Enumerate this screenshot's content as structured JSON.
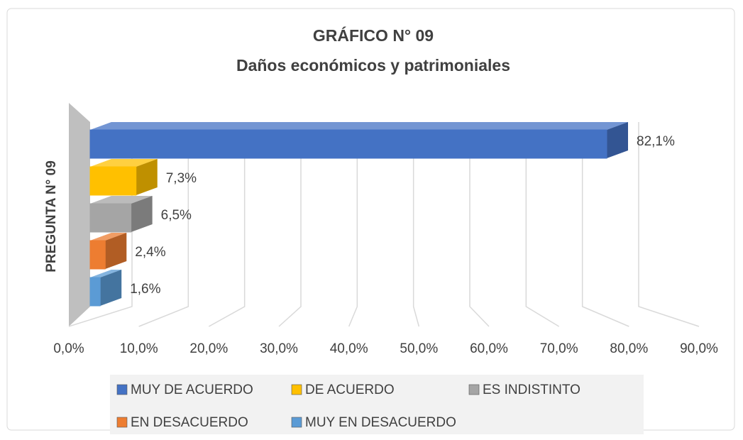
{
  "chart_data": {
    "type": "bar3d",
    "orientation": "horizontal",
    "title": "GRÁFICO N° 09",
    "subtitle": "Daños económicos y patrimoniales",
    "categories": [
      "PREGUNTA N° 09"
    ],
    "series": [
      {
        "name": "MUY DE ACUERDO",
        "color": "#4472c4",
        "values": [
          82.1
        ],
        "value_labels": [
          "82,1%"
        ]
      },
      {
        "name": "DE ACUERDO",
        "color": "#ffc000",
        "values": [
          7.3
        ],
        "value_labels": [
          "7,3%"
        ]
      },
      {
        "name": "ES INDISTINTO",
        "color": "#a5a5a5",
        "values": [
          6.5
        ],
        "value_labels": [
          "6,5%"
        ]
      },
      {
        "name": "EN DESACUERDO",
        "color": "#ed7d31",
        "values": [
          2.4
        ],
        "value_labels": [
          "2,4%"
        ]
      },
      {
        "name": "MUY EN DESACUERDO",
        "color": "#5b9bd5",
        "values": [
          1.6
        ],
        "value_labels": [
          "1,6%"
        ]
      }
    ],
    "xlim": [
      0,
      90
    ],
    "xticks": [
      {
        "value": 0,
        "label": "0,0%"
      },
      {
        "value": 10,
        "label": "10,0%"
      },
      {
        "value": 20,
        "label": "20,0%"
      },
      {
        "value": 30,
        "label": "30,0%"
      },
      {
        "value": 40,
        "label": "40,0%"
      },
      {
        "value": 50,
        "label": "50,0%"
      },
      {
        "value": 60,
        "label": "60,0%"
      },
      {
        "value": 70,
        "label": "70,0%"
      },
      {
        "value": 80,
        "label": "80,0%"
      },
      {
        "value": 90,
        "label": "90,0%"
      }
    ],
    "grid": true,
    "legend": "bottom"
  }
}
